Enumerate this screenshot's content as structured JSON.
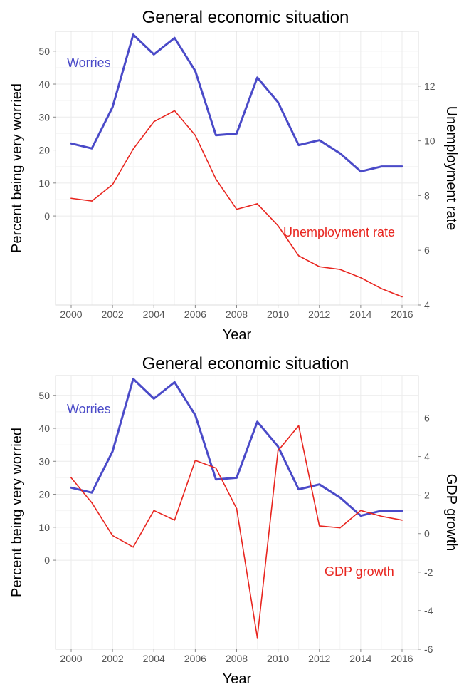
{
  "colors": {
    "worries": "#4a4ac8",
    "secondary": "#e8251f"
  },
  "chart_data": [
    {
      "type": "line",
      "title": "General economic situation",
      "xlabel": "Year",
      "ylabel": "Percent being very worried",
      "y2label": "Unemployment rate",
      "x": [
        2000,
        2001,
        2002,
        2003,
        2004,
        2005,
        2006,
        2007,
        2008,
        2009,
        2010,
        2011,
        2012,
        2013,
        2014,
        2015,
        2016
      ],
      "xticks": [
        "2000",
        "2002",
        "2004",
        "2006",
        "2008",
        "2010",
        "2012",
        "2014",
        "2016"
      ],
      "yticks": [
        "0",
        "10",
        "20",
        "30",
        "40",
        "50"
      ],
      "y2ticks": [
        "4",
        "6",
        "8",
        "10",
        "12"
      ],
      "ylim": [
        -27,
        56
      ],
      "y2lim": [
        4,
        14
      ],
      "series": [
        {
          "name": "Worries",
          "axis": "left",
          "values": [
            22,
            20.5,
            33,
            55,
            49,
            54,
            44,
            24.5,
            25,
            42,
            34.5,
            21.5,
            23,
            19,
            13.5,
            15,
            15
          ]
        },
        {
          "name": "Unemployment rate",
          "axis": "right",
          "values": [
            7.9,
            7.8,
            8.4,
            9.7,
            10.7,
            11.1,
            10.2,
            8.6,
            7.5,
            7.7,
            6.9,
            5.8,
            5.4,
            5.3,
            5.0,
            4.6,
            4.3
          ]
        }
      ],
      "annotations": [
        {
          "text": "Worries",
          "series": "Worries",
          "position": "upper-left"
        },
        {
          "text": "Unemployment rate",
          "series": "Unemployment rate",
          "position": "lower-right"
        }
      ]
    },
    {
      "type": "line",
      "title": "General economic situation",
      "xlabel": "Year",
      "ylabel": "Percent being very worried",
      "y2label": "GDP growth",
      "x": [
        2000,
        2001,
        2002,
        2003,
        2004,
        2005,
        2006,
        2007,
        2008,
        2009,
        2010,
        2011,
        2012,
        2013,
        2014,
        2015,
        2016
      ],
      "xticks": [
        "2000",
        "2002",
        "2004",
        "2006",
        "2008",
        "2010",
        "2012",
        "2014",
        "2016"
      ],
      "yticks": [
        "0",
        "10",
        "20",
        "30",
        "40",
        "50"
      ],
      "y2ticks": [
        "-6",
        "-4",
        "-2",
        "0",
        "2",
        "4",
        "6"
      ],
      "ylim": [
        -27,
        56
      ],
      "y2lim": [
        -6,
        8.2
      ],
      "series": [
        {
          "name": "Worries",
          "axis": "left",
          "values": [
            22,
            20.5,
            33,
            55,
            49,
            54,
            44,
            24.5,
            25,
            42,
            34.5,
            21.5,
            23,
            19,
            13.5,
            15,
            15
          ]
        },
        {
          "name": "GDP growth",
          "axis": "right",
          "values": [
            2.9,
            1.6,
            -0.1,
            -0.7,
            1.2,
            0.7,
            3.8,
            3.4,
            1.3,
            -5.4,
            4.3,
            5.6,
            0.4,
            0.3,
            1.2,
            0.9,
            0.7
          ]
        }
      ],
      "annotations": [
        {
          "text": "Worries",
          "series": "Worries",
          "position": "upper-left"
        },
        {
          "text": "GDP growth",
          "series": "GDP growth",
          "position": "lower-right"
        }
      ]
    }
  ]
}
